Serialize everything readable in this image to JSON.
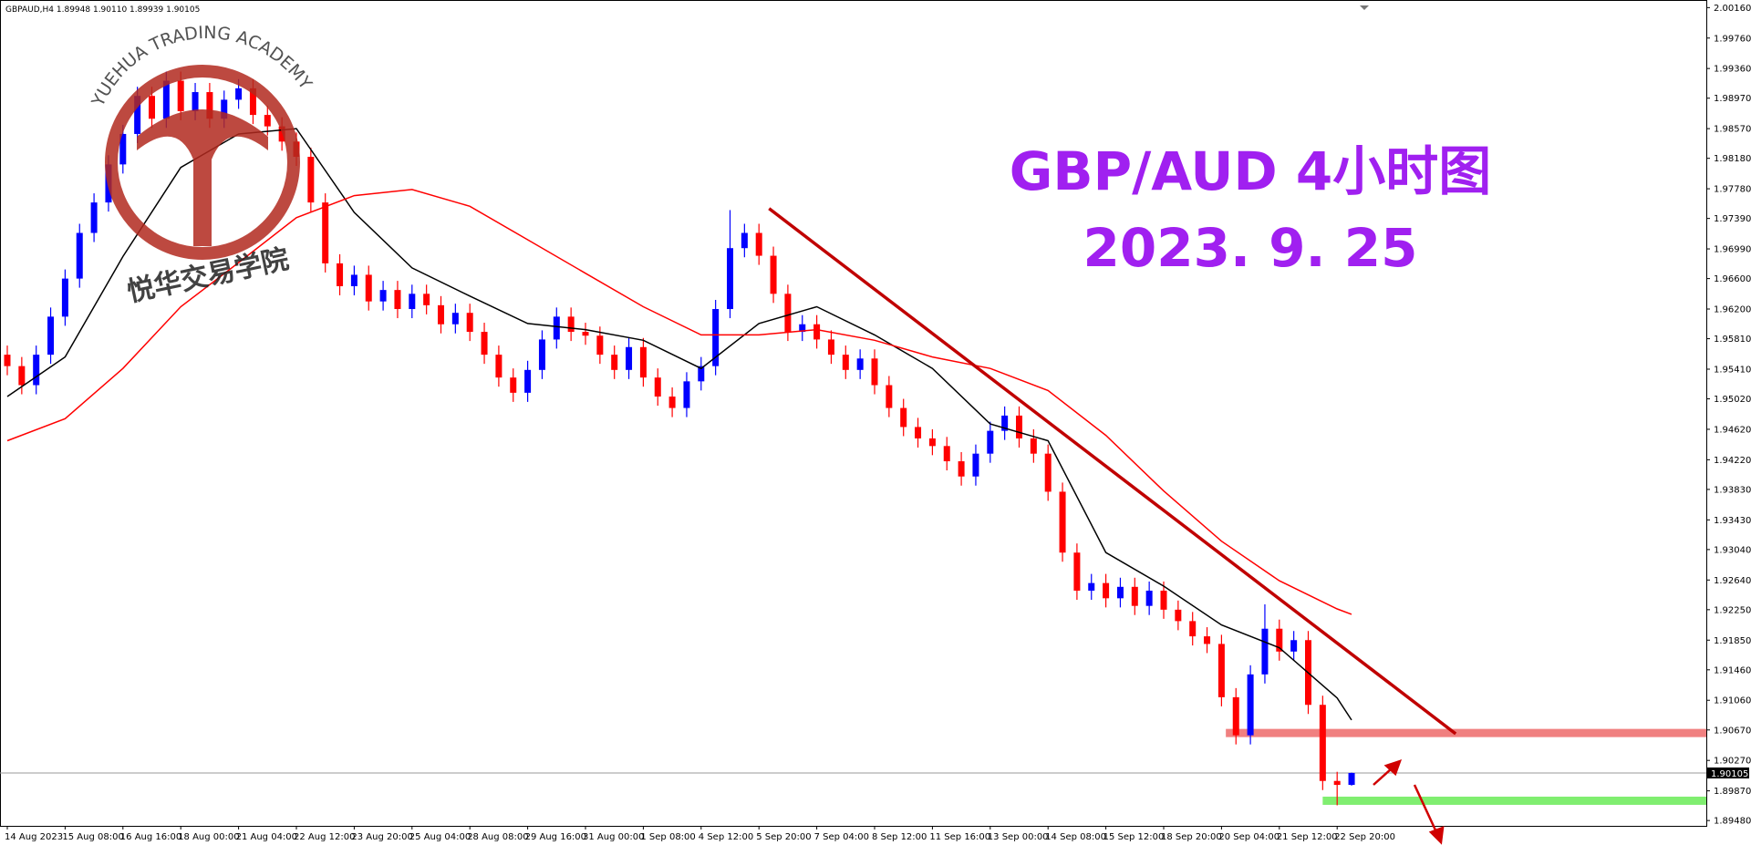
{
  "chart_data": {
    "type": "candlestick",
    "header": "GBPAUD,H4  1.89948 1.90110 1.89939 1.90105",
    "title": "GBP/AUD 4小时图",
    "subtitle": "2023. 9. 25",
    "categories": [
      "14 Aug 2023",
      null,
      null,
      null,
      "15 Aug 08:00",
      null,
      null,
      null,
      "16 Aug 16:00",
      null,
      null,
      null,
      "18 Aug 00:00",
      null,
      null,
      null,
      "21 Aug 04:00",
      null,
      null,
      null,
      "22 Aug 12:00",
      null,
      null,
      null,
      "23 Aug 20:00",
      null,
      null,
      null,
      "25 Aug 04:00",
      null,
      null,
      null,
      "28 Aug 08:00",
      null,
      null,
      null,
      "29 Aug 16:00",
      null,
      null,
      null,
      "31 Aug 00:00",
      null,
      null,
      null,
      "1 Sep 08:00",
      null,
      null,
      null,
      "4 Sep 12:00",
      null,
      null,
      null,
      "5 Sep 20:00",
      null,
      null,
      null,
      "7 Sep 04:00",
      null,
      null,
      null,
      "8 Sep 12:00",
      null,
      null,
      null,
      "11 Sep 16:00",
      null,
      null,
      null,
      "13 Sep 00:00",
      null,
      null,
      null,
      "14 Sep 08:00",
      null,
      null,
      null,
      "15 Sep 12:00",
      null,
      null,
      null,
      "18 Sep 20:00",
      null,
      null,
      null,
      "20 Sep 04:00",
      null,
      null,
      null,
      "21 Sep 12:00",
      null,
      null,
      null,
      "22 Sep 20:00",
      null
    ],
    "open": [
      1.956,
      1.9545,
      1.952,
      1.956,
      1.961,
      1.966,
      1.972,
      1.976,
      1.981,
      1.985,
      1.99,
      1.987,
      1.992,
      1.988,
      1.9905,
      1.987,
      1.9895,
      1.991,
      1.9875,
      1.986,
      1.984,
      1.982,
      1.976,
      1.968,
      1.965,
      1.9665,
      1.963,
      1.9645,
      1.962,
      1.964,
      1.9625,
      1.96,
      1.9615,
      1.959,
      1.956,
      1.953,
      1.951,
      1.954,
      1.958,
      1.961,
      1.959,
      1.9585,
      1.956,
      1.954,
      1.957,
      1.953,
      1.9505,
      1.949,
      1.9525,
      1.9545,
      1.962,
      1.97,
      1.972,
      1.969,
      1.964,
      1.959,
      1.96,
      1.958,
      1.956,
      1.954,
      1.9555,
      1.952,
      1.949,
      1.9465,
      1.945,
      1.944,
      1.942,
      1.94,
      1.943,
      1.946,
      1.948,
      1.945,
      1.943,
      1.938,
      1.93,
      1.925,
      1.926,
      1.924,
      1.9255,
      1.923,
      1.925,
      1.9225,
      1.921,
      1.919,
      1.918,
      1.911,
      1.906,
      1.914,
      1.92,
      1.917,
      1.9185,
      1.91,
      1.9,
      1.89948
    ],
    "high": [
      1.9572,
      1.9557,
      1.9572,
      1.9622,
      1.9672,
      1.9732,
      1.9772,
      1.9822,
      1.9862,
      1.9912,
      1.9912,
      1.9932,
      1.9932,
      1.9917,
      1.9917,
      1.9907,
      1.9922,
      1.9922,
      1.9887,
      1.9872,
      1.9852,
      1.9832,
      1.9772,
      1.9692,
      1.9677,
      1.9677,
      1.9657,
      1.9657,
      1.9652,
      1.9652,
      1.9637,
      1.9627,
      1.9627,
      1.9602,
      1.9572,
      1.9542,
      1.9552,
      1.9592,
      1.9622,
      1.9622,
      1.9602,
      1.9597,
      1.9572,
      1.9582,
      1.9582,
      1.9542,
      1.9517,
      1.9537,
      1.9557,
      1.9632,
      1.975,
      1.9732,
      1.9732,
      1.9702,
      1.9652,
      1.9612,
      1.9612,
      1.9592,
      1.9572,
      1.9567,
      1.9567,
      1.9532,
      1.9502,
      1.9477,
      1.9462,
      1.9452,
      1.9432,
      1.9442,
      1.9472,
      1.9492,
      1.9492,
      1.9462,
      1.9442,
      1.9392,
      1.9312,
      1.9272,
      1.9272,
      1.9267,
      1.9267,
      1.9262,
      1.9262,
      1.9237,
      1.9222,
      1.9202,
      1.9192,
      1.9122,
      1.9152,
      1.9232,
      1.9212,
      1.9197,
      1.9197,
      1.9112,
      1.9012,
      1.9011
    ],
    "low": [
      1.9533,
      1.9508,
      1.9508,
      1.9548,
      1.9598,
      1.9648,
      1.9708,
      1.9748,
      1.9798,
      1.9838,
      1.9858,
      1.9858,
      1.9868,
      1.9868,
      1.9858,
      1.9858,
      1.9883,
      1.9863,
      1.9848,
      1.9828,
      1.9808,
      1.9748,
      1.9668,
      1.9638,
      1.9638,
      1.9618,
      1.9618,
      1.9608,
      1.9608,
      1.9613,
      1.9588,
      1.9588,
      1.9578,
      1.9548,
      1.9518,
      1.9498,
      1.9498,
      1.9528,
      1.9568,
      1.9578,
      1.9573,
      1.9548,
      1.9528,
      1.9528,
      1.9518,
      1.9493,
      1.9478,
      1.9478,
      1.9513,
      1.9533,
      1.9608,
      1.9688,
      1.9678,
      1.9628,
      1.9578,
      1.9578,
      1.9568,
      1.9548,
      1.9528,
      1.9528,
      1.9508,
      1.9478,
      1.9453,
      1.9438,
      1.9428,
      1.9408,
      1.9388,
      1.9388,
      1.9418,
      1.9448,
      1.9438,
      1.9418,
      1.9368,
      1.9288,
      1.9238,
      1.9238,
      1.9228,
      1.9228,
      1.9218,
      1.9218,
      1.9213,
      1.9198,
      1.9178,
      1.9168,
      1.9098,
      1.9048,
      1.9048,
      1.9128,
      1.9158,
      1.9158,
      1.9088,
      1.8988,
      1.8968,
      1.89939
    ],
    "close": [
      1.9545,
      1.952,
      1.956,
      1.961,
      1.966,
      1.972,
      1.976,
      1.981,
      1.985,
      1.99,
      1.987,
      1.992,
      1.988,
      1.9905,
      1.987,
      1.9895,
      1.991,
      1.9875,
      1.986,
      1.984,
      1.982,
      1.976,
      1.968,
      1.965,
      1.9665,
      1.963,
      1.9645,
      1.962,
      1.964,
      1.9625,
      1.96,
      1.9615,
      1.959,
      1.956,
      1.953,
      1.951,
      1.954,
      1.958,
      1.961,
      1.959,
      1.9585,
      1.956,
      1.954,
      1.957,
      1.953,
      1.9505,
      1.949,
      1.9525,
      1.9545,
      1.962,
      1.97,
      1.972,
      1.969,
      1.964,
      1.959,
      1.96,
      1.958,
      1.956,
      1.954,
      1.9555,
      1.952,
      1.949,
      1.9465,
      1.945,
      1.944,
      1.942,
      1.94,
      1.943,
      1.946,
      1.948,
      1.945,
      1.943,
      1.938,
      1.93,
      1.925,
      1.926,
      1.924,
      1.9255,
      1.923,
      1.925,
      1.9225,
      1.921,
      1.919,
      1.918,
      1.911,
      1.906,
      1.914,
      1.92,
      1.917,
      1.9185,
      1.91,
      1.9,
      1.89948,
      1.90105
    ],
    "up_color": "#0000ff",
    "down_color": "#ff0000",
    "ylim": [
      1.8941,
      2.0026
    ],
    "yticks": [
      {
        "value": 2.0016,
        "label": "2.00160"
      },
      {
        "value": 1.9976,
        "label": "1.99760"
      },
      {
        "value": 1.9936,
        "label": "1.99360"
      },
      {
        "value": 1.9897,
        "label": "1.98970"
      },
      {
        "value": 1.9857,
        "label": "1.98570"
      },
      {
        "value": 1.9818,
        "label": "1.98180"
      },
      {
        "value": 1.9778,
        "label": "1.97780"
      },
      {
        "value": 1.9739,
        "label": "1.97390"
      },
      {
        "value": 1.9699,
        "label": "1.96990"
      },
      {
        "value": 1.966,
        "label": "1.96600"
      },
      {
        "value": 1.962,
        "label": "1.96200"
      },
      {
        "value": 1.9581,
        "label": "1.95810"
      },
      {
        "value": 1.9541,
        "label": "1.95410"
      },
      {
        "value": 1.9502,
        "label": "1.95020"
      },
      {
        "value": 1.9462,
        "label": "1.94620"
      },
      {
        "value": 1.9422,
        "label": "1.94220"
      },
      {
        "value": 1.9383,
        "label": "1.93830"
      },
      {
        "value": 1.9343,
        "label": "1.93430"
      },
      {
        "value": 1.9304,
        "label": "1.93040"
      },
      {
        "value": 1.9264,
        "label": "1.92640"
      },
      {
        "value": 1.9225,
        "label": "1.92250"
      },
      {
        "value": 1.9185,
        "label": "1.91850"
      },
      {
        "value": 1.9146,
        "label": "1.91460"
      },
      {
        "value": 1.9106,
        "label": "1.91060"
      },
      {
        "value": 1.9067,
        "label": "1.90670"
      },
      {
        "value": 1.9027,
        "label": "1.90270"
      },
      {
        "value": 1.8987,
        "label": "1.89870"
      },
      {
        "value": 1.8948,
        "label": "1.89480"
      }
    ],
    "moving_averages": [
      {
        "color": "#000000",
        "x": [
          0,
          4,
          8,
          12,
          16,
          20,
          24,
          28,
          32,
          36,
          40,
          44,
          48,
          52,
          56,
          60,
          64,
          68,
          72,
          76,
          80,
          84,
          88,
          92,
          93
        ],
        "values": [
          1.9505,
          1.9557,
          1.9689,
          1.9806,
          1.985,
          1.9857,
          1.9747,
          1.9674,
          1.9637,
          1.9601,
          1.9593,
          1.9579,
          1.9542,
          1.9601,
          1.9623,
          1.9586,
          1.9542,
          1.9469,
          1.9447,
          1.93,
          1.9256,
          1.9205,
          1.9175,
          1.9109,
          1.908
        ]
      },
      {
        "color": "#ff0000",
        "x": [
          0,
          4,
          8,
          12,
          16,
          20,
          24,
          28,
          32,
          36,
          40,
          44,
          48,
          52,
          56,
          60,
          64,
          68,
          72,
          76,
          80,
          84,
          88,
          92,
          93
        ],
        "values": [
          1.9447,
          1.9476,
          1.9542,
          1.9623,
          1.9681,
          1.974,
          1.9769,
          1.9777,
          1.9755,
          1.9711,
          1.9667,
          1.9623,
          1.9586,
          1.9586,
          1.9593,
          1.9579,
          1.9557,
          1.9542,
          1.9513,
          1.9454,
          1.9381,
          1.9315,
          1.9263,
          1.9226,
          1.9219
        ]
      }
    ],
    "trendline": {
      "color": "#c00000",
      "x": [
        52.7,
        100.2
      ],
      "values": [
        1.9752,
        1.9062
      ]
    },
    "zones": [
      {
        "color": "#f08080",
        "value": 1.9063,
        "x_start": 84.3
      },
      {
        "color": "#80ee70",
        "value": 1.8974,
        "x_start": 91
      }
    ],
    "current_price": {
      "value": 1.90105,
      "label": "1.90105"
    }
  },
  "logo": {
    "arc_text": "YUEHUA TRADING ACADEMY",
    "name": "悦华交易学院"
  }
}
